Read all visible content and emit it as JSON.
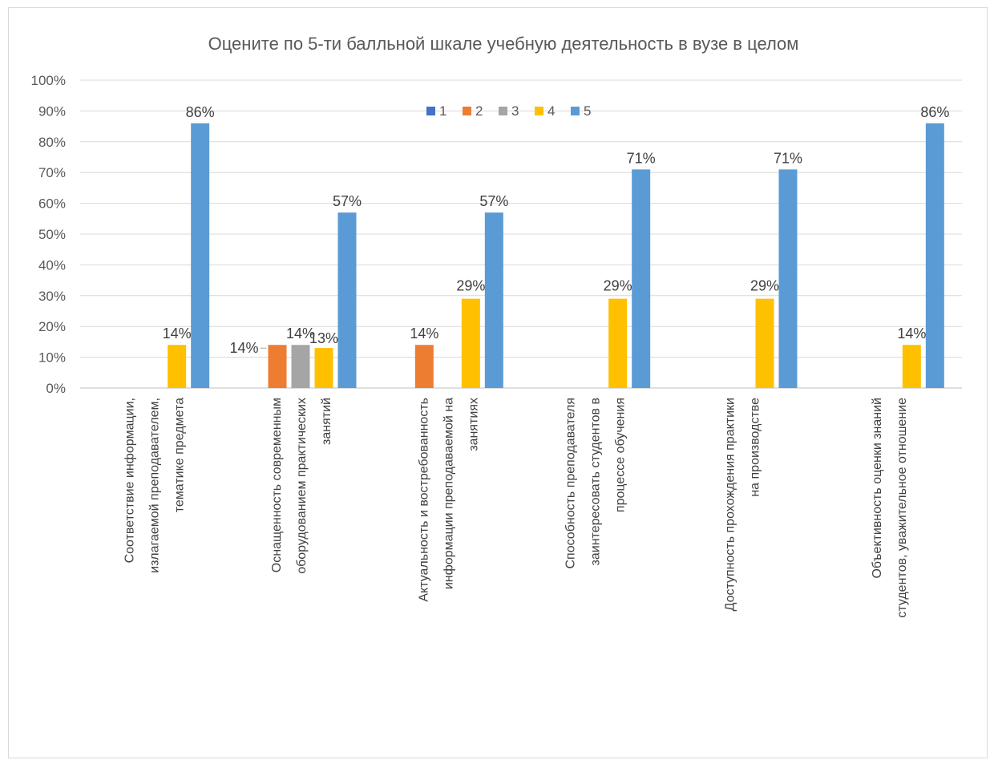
{
  "chart_data": {
    "type": "bar",
    "title": "Оцените по 5-ти балльной шкале учебную деятельность в вузе в целом",
    "xlabel": "",
    "ylabel": "",
    "ylim": [
      0,
      100
    ],
    "yticks": [
      "0%",
      "10%",
      "20%",
      "30%",
      "40%",
      "50%",
      "60%",
      "70%",
      "80%",
      "90%",
      "100%"
    ],
    "grid": true,
    "legend_position": "top",
    "categories": [
      [
        "Соответствие информации,",
        "излагаемой преподавателем,",
        "тематике предмета"
      ],
      [
        "Оснащенность современным",
        "оборудованием практических",
        "занятий"
      ],
      [
        "Актуальность и востребованность",
        "информации преподаваемой на",
        "занятиях"
      ],
      [
        "Способность преподавателя",
        "заинтересовать студентов в",
        "процессе обучения"
      ],
      [
        "Доступность прохождения практики",
        "на производстве"
      ],
      [
        "Объективность оценки знаний",
        "студентов, уважительное отношение"
      ]
    ],
    "series": [
      {
        "name": "1",
        "color": "#4472c4",
        "values": [
          0,
          0,
          0,
          0,
          0,
          0
        ],
        "labels": [
          "",
          "",
          "",
          "",
          "",
          ""
        ]
      },
      {
        "name": "2",
        "color": "#ed7d31",
        "values": [
          0,
          14,
          14,
          0,
          0,
          0
        ],
        "labels": [
          "",
          "14%",
          "14%",
          "",
          "",
          ""
        ]
      },
      {
        "name": "3",
        "color": "#a5a5a5",
        "values": [
          0,
          14,
          0,
          0,
          0,
          0
        ],
        "labels": [
          "",
          "14%",
          "",
          "",
          "",
          ""
        ]
      },
      {
        "name": "4",
        "color": "#ffc000",
        "values": [
          14,
          13,
          29,
          29,
          29,
          14
        ],
        "labels": [
          "14%",
          "13%",
          "29%",
          "29%",
          "29%",
          "14%"
        ]
      },
      {
        "name": "5",
        "color": "#5b9bd5",
        "values": [
          86,
          57,
          57,
          71,
          71,
          86
        ],
        "labels": [
          "86%",
          "57%",
          "57%",
          "71%",
          "71%",
          "86%"
        ]
      }
    ]
  }
}
